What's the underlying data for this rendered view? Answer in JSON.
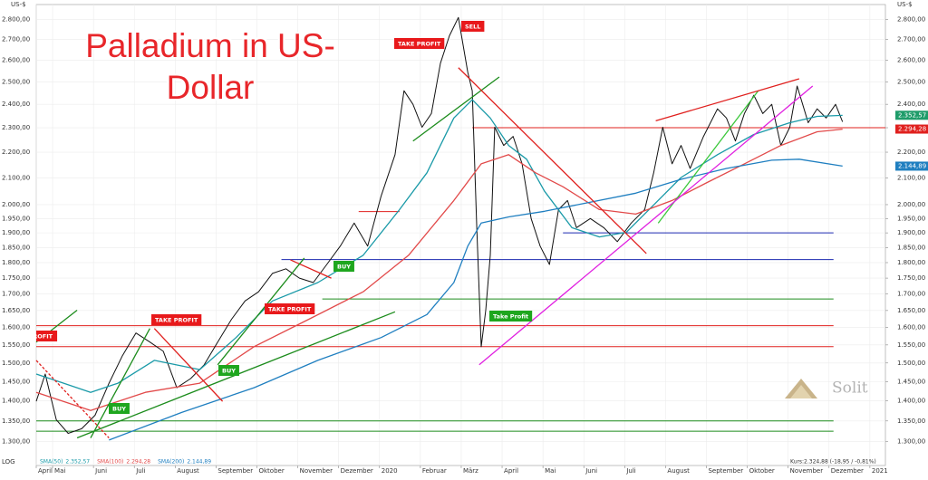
{
  "chart_data": {
    "type": "line",
    "title": "Palladium in US-Dollar",
    "y_unit": "US-$",
    "scale_label": "LOG",
    "log": true,
    "grid": true,
    "xlim": [
      0.6,
      21.38
    ],
    "xticks": [
      {
        "value": 0.6,
        "label": "April"
      },
      {
        "value": 1,
        "label": "Mai"
      },
      {
        "value": 2,
        "label": "Juni"
      },
      {
        "value": 3,
        "label": "Juli"
      },
      {
        "value": 4,
        "label": "August"
      },
      {
        "value": 5,
        "label": "September"
      },
      {
        "value": 6,
        "label": "Oktober"
      },
      {
        "value": 7,
        "label": "November"
      },
      {
        "value": 8,
        "label": "Dezember"
      },
      {
        "value": 9,
        "label": "2020"
      },
      {
        "value": 10,
        "label": "Februar"
      },
      {
        "value": 11,
        "label": "März"
      },
      {
        "value": 12,
        "label": "April"
      },
      {
        "value": 13,
        "label": "Mai"
      },
      {
        "value": 14,
        "label": "Juni"
      },
      {
        "value": 15,
        "label": "Juli"
      },
      {
        "value": 16,
        "label": "August"
      },
      {
        "value": 17,
        "label": "September"
      },
      {
        "value": 18,
        "label": "Oktober"
      },
      {
        "value": 19,
        "label": "November"
      },
      {
        "value": 20,
        "label": "Dezember"
      },
      {
        "value": 21,
        "label": "2021"
      }
    ],
    "ylim": [
      1245,
      2877
    ],
    "yticks": [
      {
        "value": 1300,
        "label": "1.300,00"
      },
      {
        "value": 1350,
        "label": "1.350,00"
      },
      {
        "value": 1400,
        "label": "1.400,00"
      },
      {
        "value": 1450,
        "label": "1.450,00"
      },
      {
        "value": 1500,
        "label": "1.500,00"
      },
      {
        "value": 1550,
        "label": "1.550,00"
      },
      {
        "value": 1600,
        "label": "1.600,00"
      },
      {
        "value": 1650,
        "label": "1.650,00"
      },
      {
        "value": 1700,
        "label": "1.700,00"
      },
      {
        "value": 1750,
        "label": "1.750,00"
      },
      {
        "value": 1800,
        "label": "1.800,00"
      },
      {
        "value": 1850,
        "label": "1.850,00"
      },
      {
        "value": 1900,
        "label": "1.900,00"
      },
      {
        "value": 1950,
        "label": "1.950,00"
      },
      {
        "value": 2000,
        "label": "2.000,00"
      },
      {
        "value": 2100,
        "label": "2.100,00"
      },
      {
        "value": 2200,
        "label": "2.200,00"
      },
      {
        "value": 2300,
        "label": "2.300,00"
      },
      {
        "value": 2400,
        "label": "2.400,00"
      },
      {
        "value": 2500,
        "label": "2.500,00"
      },
      {
        "value": 2600,
        "label": "2.600,00"
      },
      {
        "value": 2700,
        "label": "2.700,00"
      },
      {
        "value": 2800,
        "label": "2.800,00"
      }
    ],
    "series": [
      {
        "color": "#111111",
        "x": [
          0.6,
          0.82,
          1.09,
          1.38,
          1.71,
          2.04,
          2.38,
          2.71,
          3.04,
          3.38,
          3.71,
          4.04,
          4.38,
          4.71,
          5.04,
          5.38,
          5.71,
          6.04,
          6.38,
          6.71,
          7.04,
          7.38,
          7.71,
          8.04,
          8.38,
          8.71,
          9.04,
          9.38,
          9.6,
          9.82,
          10.04,
          10.27,
          10.49,
          10.71,
          10.93,
          11.16,
          11.27,
          11.38,
          11.49,
          11.6,
          11.71,
          11.82,
          12.04,
          12.27,
          12.49,
          12.71,
          12.93,
          13.16,
          13.38,
          13.6,
          13.82,
          14.16,
          14.49,
          14.82,
          15.16,
          15.49,
          15.71,
          15.93,
          16.16,
          16.38,
          16.6,
          16.93,
          17.27,
          17.49,
          17.71,
          17.93,
          18.16,
          18.38,
          18.6,
          18.82,
          19.04,
          19.22,
          19.49,
          19.71,
          19.93,
          20.16,
          20.33
        ],
        "values": [
          1399,
          1470,
          1353,
          1320,
          1331,
          1364,
          1446,
          1520,
          1584,
          1558,
          1532,
          1434,
          1458,
          1495,
          1558,
          1624,
          1679,
          1707,
          1765,
          1780,
          1750,
          1736,
          1794,
          1855,
          1934,
          1855,
          2032,
          2190,
          2460,
          2400,
          2302,
          2360,
          2586,
          2718,
          2810,
          2543,
          2460,
          1918,
          1545,
          1651,
          1824,
          2302,
          2227,
          2264,
          2154,
          1950,
          1855,
          1794,
          1982,
          2015,
          1918,
          1950,
          1918,
          1870,
          1934,
          1982,
          2119,
          2302,
          2154,
          2227,
          2136,
          2264,
          2380,
          2341,
          2245,
          2360,
          2440,
          2360,
          2400,
          2227,
          2302,
          2481,
          2321,
          2380,
          2341,
          2400,
          2325
        ]
      },
      {
        "name": "SMA(50)",
        "color": "#1a9aa8",
        "last_value": 2352.57,
        "last_label": "2.352,57",
        "label_color": "#1f9c6a",
        "x": [
          0.6,
          1.27,
          1.93,
          2.6,
          3.49,
          4.6,
          5.49,
          6.38,
          7.49,
          8.6,
          9.49,
          10.16,
          10.82,
          11.27,
          11.71,
          12.16,
          12.6,
          13.04,
          13.71,
          14.38,
          15.04,
          15.71,
          16.38,
          17.27,
          18.16,
          19.04,
          19.71,
          20.33
        ],
        "values": [
          1470,
          1446,
          1422,
          1446,
          1507,
          1482,
          1571,
          1679,
          1736,
          1824,
          1982,
          2119,
          2341,
          2420,
          2341,
          2227,
          2172,
          2049,
          1918,
          1886,
          1902,
          1999,
          2101,
          2190,
          2272,
          2321,
          2348,
          2352
        ]
      },
      {
        "name": "SMA(100)",
        "color": "#e24a4a",
        "last_value": 2294.28,
        "last_label": "2.294,28",
        "label_color": "#e0201e",
        "x": [
          0.6,
          1.93,
          3.27,
          4.6,
          5.93,
          7.27,
          8.6,
          9.71,
          10.82,
          11.49,
          12.16,
          12.82,
          13.49,
          14.38,
          15.27,
          16.16,
          17.04,
          17.93,
          18.82,
          19.71,
          20.33
        ],
        "values": [
          1422,
          1376,
          1422,
          1446,
          1545,
          1624,
          1707,
          1824,
          2015,
          2154,
          2190,
          2119,
          2066,
          1982,
          1966,
          2015,
          2084,
          2154,
          2227,
          2283,
          2294
        ]
      },
      {
        "name": "SMA(200)",
        "color": "#1f7fc0",
        "last_value": 2144.89,
        "last_label": "2.144,89",
        "label_color": "#1f7fc0",
        "x": [
          2.38,
          4.16,
          5.93,
          7.49,
          9.04,
          10.16,
          10.82,
          11.16,
          11.49,
          12.16,
          13.04,
          14.16,
          15.27,
          16.38,
          17.49,
          18.6,
          19.27,
          20.33
        ],
        "values": [
          1304,
          1371,
          1434,
          1507,
          1571,
          1638,
          1736,
          1855,
          1934,
          1956,
          1976,
          2009,
          2042,
          2094,
          2136,
          2168,
          2172,
          2145
        ]
      }
    ],
    "price_label": "Kurs:2.324,88 (-18,95 / -0,81%)",
    "levels": [
      {
        "value": 2300,
        "color": "#e0201e",
        "xlim": [
          11.27,
          21.38
        ]
      },
      {
        "value": 1605,
        "color": "#e0201e",
        "xlim": [
          0.6,
          20.11
        ]
      },
      {
        "value": 1545,
        "color": "#e0201e",
        "xlim": [
          0.6,
          20.11
        ]
      },
      {
        "value": 1685,
        "color": "#1c8c1c",
        "xlim": [
          7.6,
          20.11
        ]
      },
      {
        "value": 1900,
        "color": "#1c2ab0",
        "xlim": [
          13.49,
          20.11
        ]
      },
      {
        "value": 1810,
        "color": "#1c2ab0",
        "xlim": [
          6.6,
          20.11
        ]
      },
      {
        "value": 1350,
        "color": "#1c8c1c",
        "xlim": [
          0.6,
          20.11
        ]
      },
      {
        "value": 1325,
        "color": "#1c8c1c",
        "xlim": [
          0.6,
          20.11
        ]
      },
      {
        "value": 1975,
        "color": "#e0201e",
        "xlim": [
          8.49,
          9.49
        ]
      }
    ],
    "trendlines": [
      {
        "x": [
          0.6,
          2.38
        ],
        "values": [
          1507,
          1309
        ],
        "color": "#e0201e",
        "dash": true
      },
      {
        "x": [
          3.49,
          5.16
        ],
        "values": [
          1597,
          1399
        ],
        "color": "#e0201e"
      },
      {
        "x": [
          6.82,
          7.82
        ],
        "values": [
          1809,
          1750
        ],
        "color": "#e0201e"
      },
      {
        "x": [
          1.93,
          3.38
        ],
        "values": [
          1309,
          1597
        ],
        "color": "#1c8c1c"
      },
      {
        "x": [
          5.04,
          7.16
        ],
        "values": [
          1495,
          1815
        ],
        "color": "#1c8c1c"
      },
      {
        "x": [
          1.6,
          9.38
        ],
        "values": [
          1309,
          1646
        ],
        "color": "#1c8c1c"
      },
      {
        "x": [
          0.6,
          1.6
        ],
        "values": [
          1558,
          1651
        ],
        "color": "#1c8c1c"
      },
      {
        "x": [
          9.82,
          11.93
        ],
        "values": [
          2245,
          2522
        ],
        "color": "#1c8c1c"
      },
      {
        "x": [
          15.82,
          18.27
        ],
        "values": [
          1934,
          2460
        ],
        "color": "#3cc83c"
      },
      {
        "x": [
          10.93,
          15.53
        ],
        "values": [
          2565,
          1830
        ],
        "color": "#e0201e"
      },
      {
        "x": [
          11.44,
          19.6
        ],
        "values": [
          1495,
          2481
        ],
        "color": "#e020e0"
      },
      {
        "x": [
          15.76,
          19.27
        ],
        "values": [
          2329,
          2514
        ],
        "color": "#e0201e"
      }
    ],
    "signals": [
      {
        "label": "TAKE PROFIT",
        "color": "#e8191b"
      },
      {
        "label": "SELL",
        "color": "#e8191b"
      },
      {
        "label": "TAKE PROFIT",
        "color": "#e8191b"
      },
      {
        "label": "TAKE PROFIT",
        "color": "#e8191b"
      },
      {
        "label": "BUY",
        "color": "#1ea61e"
      },
      {
        "label": "BUY",
        "color": "#1ea61e"
      },
      {
        "label": "BUY",
        "color": "#1ea61e"
      },
      {
        "label": "Take Profit",
        "color": "#1ea61e"
      },
      {
        "label": "PROFIT",
        "color": "#e8191b"
      }
    ],
    "logo": "Solit"
  }
}
